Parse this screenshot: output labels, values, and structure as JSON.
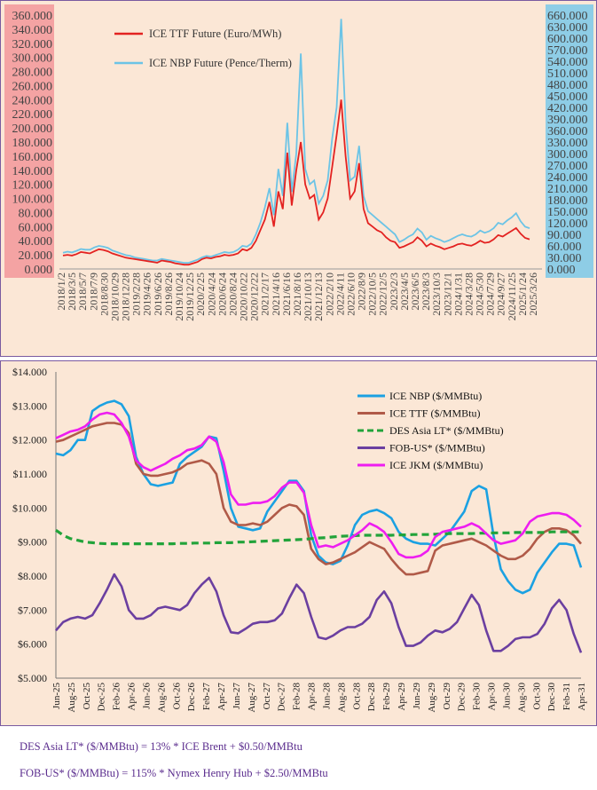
{
  "chart_data": [
    {
      "type": "line",
      "left_axis": {
        "ticks": [
          "360.000",
          "340.000",
          "320.000",
          "300.000",
          "280.000",
          "260.000",
          "240.000",
          "220.000",
          "200.000",
          "180.000",
          "160.000",
          "140.000",
          "120.000",
          "100.000",
          "80.000",
          "60.000",
          "40.000",
          "20.000",
          "0.000"
        ],
        "ylim": [
          0,
          360
        ],
        "color": "#f4a3a3"
      },
      "right_axis": {
        "ticks": [
          "660.000",
          "630.000",
          "600.000",
          "570.000",
          "540.000",
          "510.000",
          "480.000",
          "450.000",
          "420.000",
          "390.000",
          "360.000",
          "330.000",
          "300.000",
          "270.000",
          "240.000",
          "210.000",
          "180.000",
          "150.000",
          "120.000",
          "90.000",
          "60.000",
          "30.000",
          "0.000"
        ],
        "ylim": [
          0,
          660
        ],
        "color": "#8ecde6"
      },
      "x_labels": [
        "2018/1/2",
        "2018/3/5",
        "2018/5/7",
        "2018/7/9",
        "2018/8/30",
        "2018/10/29",
        "2018/12/28",
        "2019/2/28",
        "2019/4/26",
        "2019/6/26",
        "2019/8/26",
        "2019/10/24",
        "2019/12/25",
        "2020/2/25",
        "2020/4/24",
        "2020/6/24",
        "2020/8/24",
        "2020/10/22",
        "2020/12/22",
        "2021/2/17",
        "2021/4/16",
        "2021/6/16",
        "2021/8/16",
        "2021/10/13",
        "2021/12/13",
        "2022/2/10",
        "2022/4/11",
        "2022/6/10",
        "2022/8/9",
        "2022/10/5",
        "2022/12/5",
        "2023/2/3",
        "2023/4/5",
        "2023/6/5",
        "2023/8/3",
        "2023/10/3",
        "2023/12/1",
        "2024/1/31",
        "2024/3/28",
        "2024/5/30",
        "2024/7/29",
        "2024/9/27",
        "2024/11/25",
        "2025/1/24",
        "2025/3/26"
      ],
      "series": [
        {
          "name": "ICE TTF Future (Euro/MWh)",
          "color": "#e32221",
          "axis": "left",
          "values": [
            19,
            20,
            19,
            21,
            24,
            23,
            22,
            25,
            28,
            27,
            25,
            22,
            20,
            18,
            16,
            15,
            14,
            13,
            12,
            11,
            10,
            9,
            12,
            11,
            10,
            8,
            7,
            6,
            6,
            8,
            10,
            14,
            16,
            15,
            17,
            18,
            20,
            19,
            20,
            22,
            28,
            26,
            30,
            40,
            55,
            70,
            95,
            60,
            110,
            85,
            165,
            90,
            140,
            180,
            120,
            100,
            105,
            70,
            80,
            100,
            145,
            190,
            240,
            160,
            100,
            110,
            150,
            85,
            65,
            60,
            55,
            52,
            45,
            40,
            38,
            30,
            32,
            35,
            38,
            45,
            40,
            32,
            36,
            33,
            31,
            28,
            30,
            32,
            35,
            36,
            34,
            33,
            36,
            40,
            37,
            38,
            42,
            48,
            46,
            50,
            54,
            58,
            50,
            44,
            42
          ]
        },
        {
          "name": "ICE NBP Future (Pence/Therm)",
          "color": "#6cc4e6",
          "axis": "right",
          "values": [
            42,
            45,
            43,
            47,
            52,
            50,
            50,
            56,
            60,
            58,
            55,
            48,
            44,
            40,
            36,
            34,
            30,
            28,
            26,
            24,
            22,
            22,
            26,
            24,
            22,
            20,
            18,
            16,
            16,
            20,
            24,
            30,
            34,
            32,
            36,
            40,
            44,
            42,
            44,
            50,
            60,
            58,
            66,
            90,
            120,
            160,
            210,
            140,
            260,
            190,
            380,
            200,
            300,
            560,
            260,
            220,
            230,
            170,
            190,
            230,
            340,
            420,
            650,
            380,
            230,
            240,
            320,
            190,
            150,
            140,
            130,
            120,
            110,
            100,
            90,
            70,
            76,
            84,
            90,
            105,
            95,
            76,
            86,
            80,
            76,
            70,
            74,
            80,
            86,
            90,
            86,
            84,
            90,
            100,
            94,
            98,
            106,
            120,
            116,
            126,
            134,
            145,
            124,
            110,
            106
          ]
        }
      ]
    },
    {
      "type": "line",
      "ylim": [
        5,
        14
      ],
      "y_ticks": [
        "$5.000",
        "$6.000",
        "$7.000",
        "$8.000",
        "$9.000",
        "$10.000",
        "$11.000",
        "$12.000",
        "$13.000",
        "$14.000"
      ],
      "x_labels": [
        "Jun-25",
        "Aug-25",
        "Oct-25",
        "Dec-25",
        "Feb-26",
        "Apr-26",
        "Jun-26",
        "Aug-26",
        "Oct-26",
        "Dec-26",
        "Feb-27",
        "Apr-27",
        "Jun-27",
        "Aug-27",
        "Oct-27",
        "Dec-27",
        "Feb-28",
        "Apr-28",
        "Jun-28",
        "Aug-28",
        "Oct-28",
        "Dec-28",
        "Feb-29",
        "Apr-29",
        "Jun-29",
        "Aug-29",
        "Oct-29",
        "Dec-29",
        "Feb-30",
        "Apr-30",
        "Jun-30",
        "Aug-30",
        "Oct-30",
        "Dec-30",
        "Feb-31",
        "Apr-31"
      ],
      "series": [
        {
          "name": "ICE NBP ($/MMBtu)",
          "color": "#1ba1e2",
          "dash": false,
          "values": [
            11.6,
            11.55,
            11.7,
            12.0,
            12.0,
            12.85,
            13.0,
            13.1,
            13.15,
            13.05,
            12.7,
            11.5,
            11.0,
            10.7,
            10.65,
            10.7,
            10.75,
            11.3,
            11.5,
            11.65,
            11.8,
            12.1,
            12.05,
            11.1,
            10.0,
            9.45,
            9.4,
            9.35,
            9.4,
            9.9,
            10.2,
            10.5,
            10.8,
            10.8,
            10.5,
            9.2,
            8.6,
            8.4,
            8.35,
            8.45,
            8.9,
            9.5,
            9.8,
            9.9,
            9.95,
            9.85,
            9.7,
            9.3,
            9.1,
            9.0,
            8.95,
            8.95,
            8.9,
            9.1,
            9.3,
            9.6,
            9.9,
            10.5,
            10.65,
            10.55,
            9.2,
            8.2,
            7.85,
            7.6,
            7.5,
            7.6,
            8.1,
            8.4,
            8.7,
            8.95,
            8.95,
            8.9,
            8.25
          ]
        },
        {
          "name": "ICE TTF ($/MMBtu)",
          "color": "#b05a48",
          "dash": false,
          "values": [
            11.95,
            12.0,
            12.1,
            12.2,
            12.3,
            12.4,
            12.45,
            12.5,
            12.5,
            12.45,
            12.2,
            11.3,
            11.0,
            10.95,
            10.95,
            11.0,
            11.05,
            11.15,
            11.3,
            11.35,
            11.4,
            11.3,
            11.0,
            10.0,
            9.6,
            9.5,
            9.5,
            9.55,
            9.5,
            9.6,
            9.8,
            10.0,
            10.1,
            10.05,
            9.8,
            8.8,
            8.5,
            8.35,
            8.4,
            8.5,
            8.6,
            8.7,
            8.85,
            9.0,
            8.9,
            8.8,
            8.5,
            8.25,
            8.05,
            8.05,
            8.1,
            8.15,
            8.75,
            8.9,
            8.95,
            9.0,
            9.05,
            9.1,
            9.0,
            8.9,
            8.75,
            8.6,
            8.5,
            8.5,
            8.6,
            8.8,
            9.1,
            9.3,
            9.4,
            9.4,
            9.35,
            9.2,
            8.95
          ]
        },
        {
          "name": "DES Asia LT* ($/MMBtu)",
          "color": "#22a33a",
          "dash": true,
          "values": [
            9.35,
            9.2,
            9.1,
            9.05,
            9.0,
            8.98,
            8.96,
            8.95,
            8.95,
            8.95,
            8.95,
            8.95,
            8.95,
            8.95,
            8.95,
            8.95,
            8.95,
            8.96,
            8.96,
            8.97,
            8.97,
            8.97,
            8.98,
            8.98,
            8.98,
            9.0,
            9.0,
            9.01,
            9.02,
            9.03,
            9.04,
            9.05,
            9.06,
            9.07,
            9.08,
            9.1,
            9.12,
            9.13,
            9.15,
            9.17,
            9.18,
            9.19,
            9.2,
            9.2,
            9.2,
            9.2,
            9.2,
            9.21,
            9.21,
            9.22,
            9.22,
            9.22,
            9.23,
            9.24,
            9.25,
            9.25,
            9.25,
            9.25,
            9.26,
            9.26,
            9.27,
            9.27,
            9.27,
            9.28,
            9.28,
            9.28,
            9.28,
            9.28,
            9.3,
            9.3,
            9.3,
            9.3,
            9.3
          ]
        },
        {
          "name": "FOB-US* ($/MMBtu)",
          "color": "#6b3fa0",
          "dash": false,
          "values": [
            6.4,
            6.65,
            6.75,
            6.8,
            6.75,
            6.85,
            7.2,
            7.6,
            8.05,
            7.7,
            7.0,
            6.75,
            6.75,
            6.85,
            7.05,
            7.1,
            7.05,
            7.0,
            7.15,
            7.5,
            7.75,
            7.95,
            7.55,
            6.85,
            6.35,
            6.32,
            6.45,
            6.6,
            6.65,
            6.65,
            6.7,
            6.9,
            7.35,
            7.75,
            7.5,
            6.8,
            6.2,
            6.15,
            6.25,
            6.4,
            6.5,
            6.5,
            6.6,
            6.8,
            7.3,
            7.55,
            7.2,
            6.5,
            5.95,
            5.95,
            6.05,
            6.25,
            6.4,
            6.35,
            6.45,
            6.65,
            7.05,
            7.45,
            7.15,
            6.4,
            5.8,
            5.8,
            5.95,
            6.15,
            6.2,
            6.2,
            6.3,
            6.6,
            7.05,
            7.3,
            7.0,
            6.3,
            5.75
          ]
        },
        {
          "name": "ICE JKM ($/MMBtu)",
          "color": "#ee1df0",
          "dash": false,
          "values": [
            12.05,
            12.15,
            12.25,
            12.3,
            12.4,
            12.6,
            12.75,
            12.8,
            12.75,
            12.5,
            12.1,
            11.4,
            11.2,
            11.1,
            11.2,
            11.3,
            11.45,
            11.55,
            11.7,
            11.75,
            11.85,
            12.1,
            11.95,
            11.35,
            10.4,
            10.1,
            10.1,
            10.15,
            10.15,
            10.2,
            10.35,
            10.6,
            10.75,
            10.75,
            10.45,
            9.5,
            8.85,
            8.9,
            8.85,
            8.95,
            9.05,
            9.2,
            9.35,
            9.55,
            9.45,
            9.3,
            9.0,
            8.65,
            8.55,
            8.55,
            8.6,
            8.75,
            9.15,
            9.3,
            9.35,
            9.4,
            9.45,
            9.55,
            9.45,
            9.25,
            9.05,
            8.95,
            9.0,
            9.05,
            9.25,
            9.6,
            9.75,
            9.8,
            9.85,
            9.85,
            9.8,
            9.65,
            9.45
          ]
        }
      ]
    }
  ],
  "notes": {
    "des_asia": "DES Asia LT* ($/MMBtu) = 13% * ICE Brent + $0.50/MMBtu",
    "fob_us": "FOB-US* ($/MMBtu) = 115% * Nymex Henry Hub + $2.50/MMBtu"
  }
}
